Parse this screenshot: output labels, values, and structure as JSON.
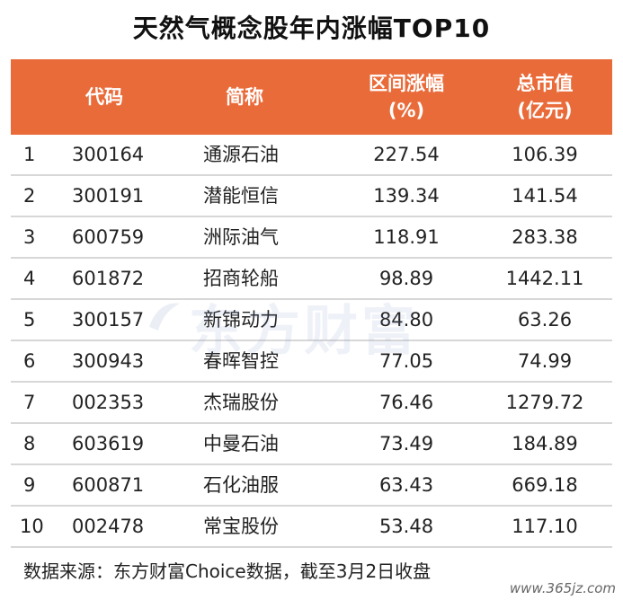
{
  "title": "天然气概念股年内涨幅TOP10",
  "headers": {
    "code": "代码",
    "name": "简称",
    "pct_line1": "区间涨幅",
    "pct_line2": "(%)",
    "cap_line1": "总市值",
    "cap_line2": "(亿元)"
  },
  "rows": [
    {
      "rank": "1",
      "code": "300164",
      "name": "通源石油",
      "pct": "227.54",
      "cap": "106.39"
    },
    {
      "rank": "2",
      "code": "300191",
      "name": "潜能恒信",
      "pct": "139.34",
      "cap": "141.54"
    },
    {
      "rank": "3",
      "code": "600759",
      "name": "洲际油气",
      "pct": "118.91",
      "cap": "283.38"
    },
    {
      "rank": "4",
      "code": "601872",
      "name": "招商轮船",
      "pct": "98.89",
      "cap": "1442.11"
    },
    {
      "rank": "5",
      "code": "300157",
      "name": "新锦动力",
      "pct": "84.80",
      "cap": "63.26"
    },
    {
      "rank": "6",
      "code": "300943",
      "name": "春晖智控",
      "pct": "77.05",
      "cap": "74.99"
    },
    {
      "rank": "7",
      "code": "002353",
      "name": "杰瑞股份",
      "pct": "76.46",
      "cap": "1279.72"
    },
    {
      "rank": "8",
      "code": "603619",
      "name": "中曼石油",
      "pct": "73.49",
      "cap": "184.89"
    },
    {
      "rank": "9",
      "code": "600871",
      "name": "石化油服",
      "pct": "63.43",
      "cap": "669.18"
    },
    {
      "rank": "10",
      "code": "002478",
      "name": "常宝股份",
      "pct": "53.48",
      "cap": "117.10"
    }
  ],
  "watermark": "东方财富",
  "source": "数据来源：东方财富Choice数据，截至3月2日收盘",
  "site": "www.365jz.com",
  "colors": {
    "header_bg": "#ea6b3a",
    "header_text": "#ffffff",
    "row_border": "#d7d7d7"
  }
}
